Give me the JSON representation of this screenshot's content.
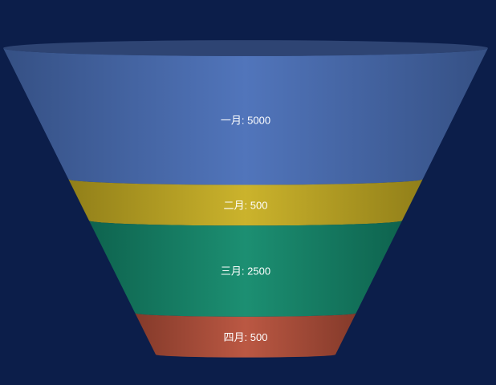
{
  "colors": {
    "background": "#0c1e4a",
    "rim": "#2e4473"
  },
  "chart_data": {
    "type": "funnel",
    "title": "",
    "segments": [
      {
        "label": "一月: 5000",
        "name": "一月",
        "value": 5000,
        "color": "#4a6fb8"
      },
      {
        "label": "二月: 500",
        "name": "二月",
        "value": 500,
        "color": "#c9b023"
      },
      {
        "label": "三月: 2500",
        "name": "三月",
        "value": 2500,
        "color": "#138a6c"
      },
      {
        "label": "四月: 500",
        "name": "四月",
        "value": 500,
        "color": "#b8513b"
      }
    ]
  }
}
